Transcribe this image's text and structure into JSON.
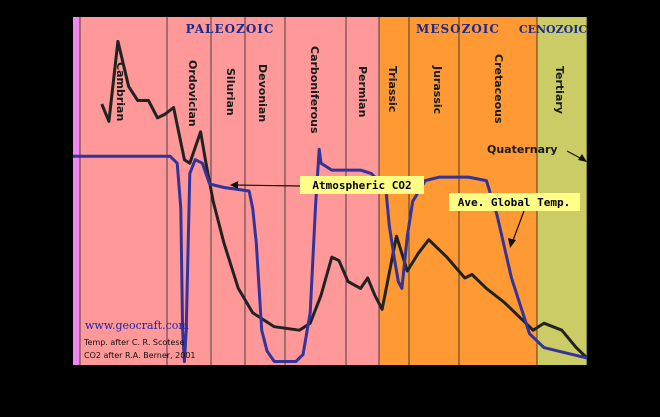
{
  "chart_data": {
    "type": "line",
    "title": "",
    "xlabel": "",
    "ylabel": "",
    "eras": [
      {
        "name": "PALEOZOIC",
        "color": "#ff9999"
      },
      {
        "name": "MESOZOIC",
        "color": "#ff9933"
      },
      {
        "name": "CENOZOIC",
        "color": "#cccc66"
      }
    ],
    "periods": [
      {
        "name": "Cambrian"
      },
      {
        "name": "Ordovician"
      },
      {
        "name": "Silurian"
      },
      {
        "name": "Devonian"
      },
      {
        "name": "Carboniferous"
      },
      {
        "name": "Permian"
      },
      {
        "name": "Triassic"
      },
      {
        "name": "Jurassic"
      },
      {
        "name": "Cretaceous"
      },
      {
        "name": "Tertiary"
      },
      {
        "name": "Quaternary"
      }
    ],
    "series": [
      {
        "name": "Atmospheric CO2",
        "color": "#222222",
        "points": [
          [
            0.08,
            0.75
          ],
          [
            0.1,
            0.7
          ],
          [
            0.125,
            0.93
          ],
          [
            0.155,
            0.8
          ],
          [
            0.18,
            0.76
          ],
          [
            0.21,
            0.76
          ],
          [
            0.235,
            0.71
          ],
          [
            0.255,
            0.72
          ],
          [
            0.28,
            0.74
          ],
          [
            0.31,
            0.59
          ],
          [
            0.325,
            0.58
          ],
          [
            0.355,
            0.67
          ],
          [
            0.37,
            0.58
          ],
          [
            0.39,
            0.47
          ],
          [
            0.42,
            0.35
          ],
          [
            0.46,
            0.22
          ],
          [
            0.5,
            0.15
          ],
          [
            0.56,
            0.11
          ],
          [
            0.63,
            0.1
          ],
          [
            0.66,
            0.12
          ],
          [
            0.69,
            0.2
          ],
          [
            0.72,
            0.31
          ],
          [
            0.74,
            0.3
          ],
          [
            0.765,
            0.24
          ],
          [
            0.8,
            0.22
          ],
          [
            0.82,
            0.25
          ],
          [
            0.84,
            0.2
          ],
          [
            0.86,
            0.16
          ],
          [
            0.9,
            0.37
          ],
          [
            0.93,
            0.27
          ],
          [
            0.96,
            0.32
          ],
          [
            0.99,
            0.36
          ],
          [
            1.0,
            0.35
          ],
          [
            1.04,
            0.31
          ],
          [
            1.09,
            0.25
          ],
          [
            1.11,
            0.26
          ],
          [
            1.15,
            0.22
          ],
          [
            1.2,
            0.18
          ],
          [
            1.23,
            0.15
          ],
          [
            1.28,
            0.1
          ],
          [
            1.31,
            0.12
          ],
          [
            1.36,
            0.1
          ],
          [
            1.4,
            0.05
          ],
          [
            1.43,
            0.02
          ]
        ]
      },
      {
        "name": "Ave. Global Temp.",
        "color": "#333399",
        "points": [
          [
            0.0,
            0.6
          ],
          [
            0.27,
            0.6
          ],
          [
            0.29,
            0.58
          ],
          [
            0.3,
            0.45
          ],
          [
            0.305,
            0.1
          ],
          [
            0.31,
            0.01
          ],
          [
            0.315,
            0.1
          ],
          [
            0.325,
            0.55
          ],
          [
            0.34,
            0.59
          ],
          [
            0.36,
            0.58
          ],
          [
            0.38,
            0.52
          ],
          [
            0.42,
            0.51
          ],
          [
            0.49,
            0.5
          ],
          [
            0.5,
            0.45
          ],
          [
            0.51,
            0.35
          ],
          [
            0.525,
            0.1
          ],
          [
            0.54,
            0.04
          ],
          [
            0.56,
            0.01
          ],
          [
            0.62,
            0.01
          ],
          [
            0.64,
            0.03
          ],
          [
            0.66,
            0.15
          ],
          [
            0.675,
            0.46
          ],
          [
            0.685,
            0.62
          ],
          [
            0.69,
            0.58
          ],
          [
            0.72,
            0.56
          ],
          [
            0.8,
            0.56
          ],
          [
            0.83,
            0.55
          ],
          [
            0.87,
            0.51
          ],
          [
            0.88,
            0.4
          ],
          [
            0.895,
            0.3
          ],
          [
            0.905,
            0.24
          ],
          [
            0.915,
            0.22
          ],
          [
            0.93,
            0.37
          ],
          [
            0.945,
            0.47
          ],
          [
            0.98,
            0.53
          ],
          [
            1.02,
            0.54
          ],
          [
            1.1,
            0.54
          ],
          [
            1.15,
            0.53
          ],
          [
            1.18,
            0.43
          ],
          [
            1.22,
            0.25
          ],
          [
            1.27,
            0.09
          ],
          [
            1.31,
            0.05
          ],
          [
            1.35,
            0.04
          ],
          [
            1.39,
            0.03
          ],
          [
            1.43,
            0.02
          ]
        ]
      }
    ],
    "annotations": {
      "co2_label": "Atmospheric CO2",
      "temp_label": "Ave. Global Temp.",
      "quaternary_label": "Quaternary"
    },
    "credits": {
      "url": "www.geocraft.com",
      "temp_credit": "Temp. after C. R. Scotese",
      "co2_credit": "CO2 after R.A. Berner, 2001"
    }
  }
}
